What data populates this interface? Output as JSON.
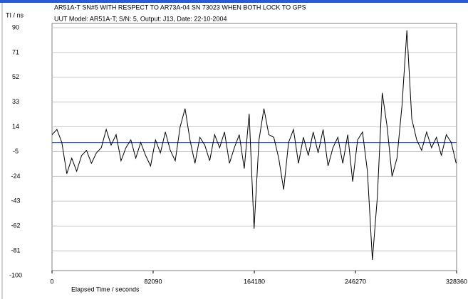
{
  "chart_data": {
    "type": "line",
    "title": "AR51A-T SN#5 WITH RESPECT TO AR73A-04 SN 73023 WHEN BOTH LOCK TO GPS",
    "subtitle": "UUT Model: AR51A-T;  S/N: 5,  Output: J13,  Date: 22-10-2004",
    "y_label": "TI / ns",
    "x_label": "Elapsed Time / seconds",
    "xlim": [
      0,
      328360
    ],
    "xticks": [
      0,
      82090,
      164180,
      246270,
      328360
    ],
    "ylim": [
      -100,
      90
    ],
    "yticks": [
      90,
      71,
      52,
      33,
      14,
      -5,
      -24,
      -43,
      -62,
      -81,
      -100
    ],
    "grid": true,
    "x": [
      0,
      4000,
      8000,
      12000,
      16000,
      20000,
      24000,
      28000,
      32000,
      36000,
      40000,
      44000,
      48000,
      52000,
      56000,
      60000,
      64000,
      68000,
      72000,
      76000,
      80000,
      84000,
      88000,
      92000,
      96000,
      100000,
      104000,
      108000,
      112000,
      116000,
      120000,
      124000,
      128000,
      132000,
      136000,
      140000,
      144000,
      148000,
      152000,
      156000,
      160000,
      164000,
      168000,
      172000,
      176000,
      180000,
      184000,
      188000,
      192000,
      196000,
      200000,
      204000,
      208000,
      212000,
      216000,
      220000,
      224000,
      228000,
      232000,
      236000,
      240000,
      244000,
      248000,
      252000,
      256000,
      260000,
      264000,
      268000,
      272000,
      276000,
      280000,
      284000,
      288000,
      292000,
      296000,
      300000,
      304000,
      308000,
      312000,
      316000,
      320000,
      324000,
      328000
    ],
    "series": [
      {
        "color": "#000000",
        "values": [
          8,
          12,
          2,
          -22,
          -10,
          -20,
          -8,
          -4,
          -14,
          -6,
          -2,
          12,
          0,
          8,
          -12,
          -2,
          4,
          -10,
          2,
          -8,
          -16,
          4,
          -6,
          10,
          -4,
          -12,
          14,
          28,
          4,
          -14,
          6,
          0,
          -12,
          8,
          -2,
          10,
          -14,
          -2,
          8,
          -18,
          24,
          -64,
          4,
          28,
          8,
          6,
          -10,
          -34,
          2,
          12,
          -14,
          6,
          -8,
          10,
          -6,
          12,
          -16,
          -2,
          6,
          -14,
          8,
          -28,
          4,
          10,
          -20,
          -88,
          -40,
          40,
          14,
          -24,
          -10,
          30,
          88,
          20,
          4,
          -4,
          10,
          -2,
          6,
          -8,
          8,
          2,
          -14
        ]
      }
    ],
    "reference_line": {
      "value": 2,
      "color": "#3050c0"
    }
  }
}
